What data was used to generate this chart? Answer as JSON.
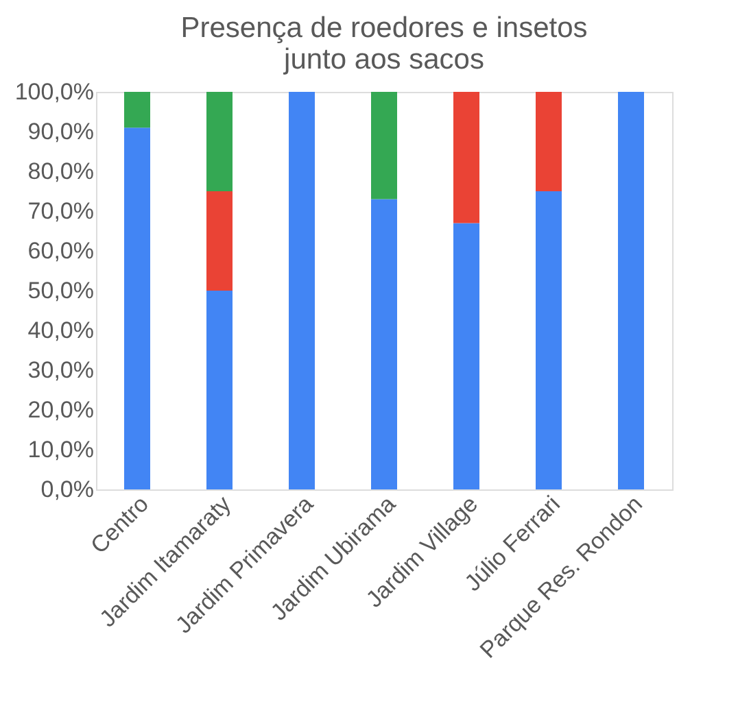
{
  "chart_data": {
    "type": "bar",
    "title": "Presença de roedores e insetos\njunto aos sacos",
    "categories": [
      "Centro",
      "Jardim Itamaraty",
      "Jardim Primavera",
      "Jardim Ubirama",
      "Jardim Village",
      "Júlio Ferrari",
      "Parque Res. Rondon"
    ],
    "stacked": true,
    "series": [
      {
        "color": "#4285f4",
        "values": [
          91,
          50,
          100,
          73,
          67,
          75,
          100
        ]
      },
      {
        "color": "#ea4335",
        "values": [
          0,
          25,
          0,
          0,
          33,
          25,
          0
        ]
      },
      {
        "color": "#34a853",
        "values": [
          9,
          25,
          0,
          27,
          0,
          0,
          0
        ]
      }
    ],
    "ylim": [
      0,
      100
    ],
    "yticks": [
      {
        "value": 0,
        "label": "0,0%"
      },
      {
        "value": 10,
        "label": "10,0%"
      },
      {
        "value": 20,
        "label": "20,0%"
      },
      {
        "value": 30,
        "label": "30,0%"
      },
      {
        "value": 40,
        "label": "40,0%"
      },
      {
        "value": 50,
        "label": "50,0%"
      },
      {
        "value": 60,
        "label": "60,0%"
      },
      {
        "value": 70,
        "label": "70,0%"
      },
      {
        "value": 80,
        "label": "80,0%"
      },
      {
        "value": 90,
        "label": "90,0%"
      },
      {
        "value": 100,
        "label": "100,0%"
      }
    ],
    "grid": false,
    "legend": false
  }
}
